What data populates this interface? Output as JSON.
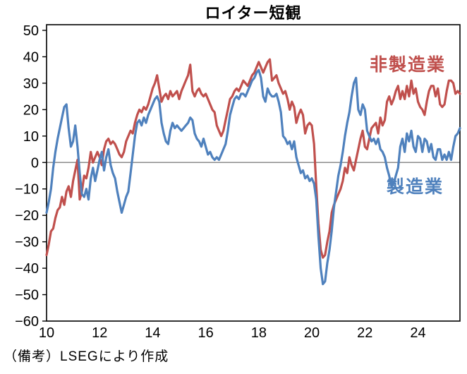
{
  "title": "ロイター短観",
  "note": "（備考）LSEGにより作成",
  "chart_data": {
    "type": "line",
    "title": "ロイター短観",
    "x_unit": "month",
    "x_start": "2010-01",
    "x_end": "2025-08",
    "xlabel": "",
    "ylabel": "",
    "ylim": [
      -60,
      50
    ],
    "y_ticks": [
      50,
      40,
      30,
      20,
      10,
      0,
      -10,
      -20,
      -30,
      -40,
      -50,
      -60
    ],
    "x_tick_labels": [
      "10",
      "12",
      "14",
      "16",
      "18",
      "20",
      "22",
      "24"
    ],
    "x_tick_month_indices": [
      0,
      24,
      48,
      72,
      96,
      120,
      144,
      168
    ],
    "grid": false,
    "zero_line": true,
    "zero_line_color": "#8c8c8c",
    "axis_color": "#000000",
    "legend_position": "inside-right",
    "legend": [
      {
        "key": "non-manufacturing",
        "name": "非製造業",
        "color": "#C0504D"
      },
      {
        "key": "manufacturing",
        "name": "製造業",
        "color": "#4F81BD"
      }
    ],
    "series": [
      {
        "key": "non-manufacturing",
        "name": "非製造業",
        "color": "#C0504D",
        "values": [
          -35,
          -31,
          -26,
          -25,
          -21,
          -18,
          -17,
          -13,
          -16,
          -11,
          -9,
          -13,
          -7,
          -3,
          1,
          -14,
          -11,
          -5,
          -6,
          -2,
          4,
          0,
          2,
          4,
          2,
          -1,
          5,
          8,
          9,
          7,
          8,
          7,
          5,
          3,
          2,
          4,
          8,
          10,
          12,
          11,
          15,
          18,
          20,
          19,
          21,
          20,
          22,
          25,
          28,
          30,
          33,
          28,
          23,
          25,
          26,
          24,
          27,
          25,
          26,
          27,
          24,
          27,
          29,
          31,
          33,
          37,
          27,
          25,
          27,
          28,
          26,
          25,
          26,
          24,
          22,
          20,
          19,
          14,
          12,
          10,
          12,
          16,
          20,
          24,
          25,
          27,
          28,
          27,
          29,
          31,
          30,
          29,
          31,
          33,
          34,
          36,
          38,
          36,
          34,
          36,
          38,
          39,
          31,
          32,
          33,
          30,
          28,
          26,
          27,
          24,
          20,
          23,
          21,
          15,
          18,
          20,
          18,
          11,
          14,
          15,
          14,
          7,
          -9,
          -23,
          -33,
          -36,
          -35,
          -30,
          -26,
          -19,
          -16,
          -14,
          -12,
          -10,
          -7,
          -2,
          -4,
          2,
          -1,
          -3,
          1,
          5,
          9,
          12,
          6,
          5,
          9,
          13,
          14,
          15,
          11,
          17,
          14,
          16,
          23,
          25,
          22,
          24,
          27,
          29,
          24,
          27,
          24,
          29,
          25,
          31,
          26,
          28,
          23,
          21,
          20,
          18,
          23,
          27,
          29,
          29,
          25,
          28,
          22,
          21,
          22,
          27,
          31,
          31,
          30,
          26,
          27,
          26
        ]
      },
      {
        "key": "manufacturing",
        "name": "製造業",
        "color": "#4F81BD",
        "values": [
          -19,
          -15,
          -10,
          -2,
          4,
          9,
          13,
          17,
          21,
          22,
          13,
          6,
          8,
          14,
          6,
          -4,
          -12,
          -13,
          -10,
          -14,
          -6,
          -2,
          -7,
          -3,
          1,
          4,
          -3,
          2,
          5,
          -1,
          -4,
          -6,
          -11,
          -15,
          -19,
          -16,
          -13,
          -11,
          -4,
          3,
          10,
          15,
          16,
          14,
          17,
          15,
          18,
          20,
          22,
          24,
          25,
          23,
          15,
          11,
          8,
          7,
          12,
          15,
          13,
          14,
          13,
          12,
          13,
          14,
          15,
          17,
          16,
          11,
          9,
          8,
          6,
          9,
          6,
          3,
          4,
          2,
          1,
          2,
          1,
          3,
          5,
          7,
          12,
          18,
          21,
          24,
          25,
          24,
          26,
          26,
          25,
          27,
          29,
          31,
          32,
          34,
          35,
          32,
          25,
          23,
          28,
          26,
          25,
          25,
          26,
          23,
          19,
          10,
          9,
          7,
          8,
          5,
          8,
          2,
          -1,
          -4,
          -3,
          -6,
          -5,
          -7,
          -6,
          -8,
          -14,
          -28,
          -40,
          -46,
          -45,
          -38,
          -33,
          -26,
          -17,
          -11,
          -5,
          -1,
          4,
          10,
          15,
          19,
          25,
          30,
          32,
          20,
          18,
          22,
          20,
          12,
          10,
          8,
          9,
          7,
          9,
          5,
          4,
          2,
          -2,
          -5,
          -9,
          -8,
          -5,
          -2,
          6,
          9,
          4,
          11,
          8,
          12,
          6,
          4,
          10,
          9,
          4,
          9,
          8,
          4,
          7,
          2,
          1,
          5,
          5,
          1,
          3,
          1,
          4,
          1,
          6,
          10,
          11,
          13
        ]
      }
    ]
  }
}
